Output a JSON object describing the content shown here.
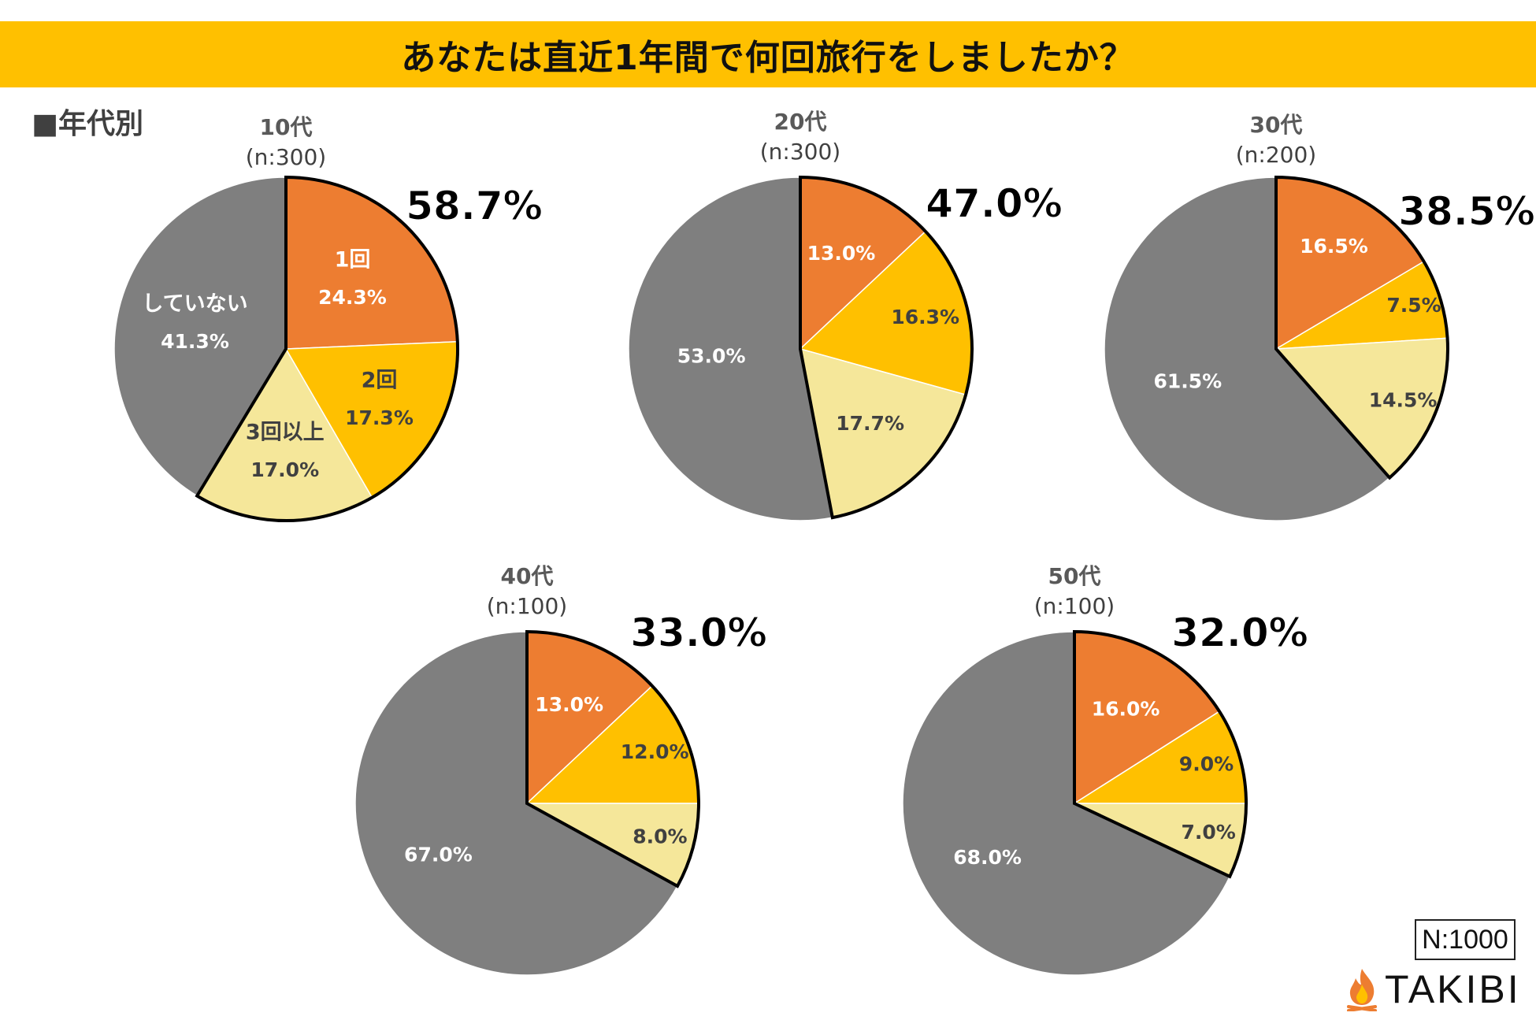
{
  "title": "あなたは直近1年間で何回旅行をしましたか？",
  "section_label": "■年代別",
  "total_n": "N:1000",
  "brand": "TAKIBI",
  "colors": {
    "once": "#ED7D31",
    "twice": "#FFC000",
    "three_plus": "#F5E79A",
    "none": "#7F7F7F",
    "title_bg": "#FFC000"
  },
  "chart_data": [
    {
      "type": "pie",
      "title": "10代",
      "subtitle": "(n:300)",
      "highlight": "58.7%",
      "slices": [
        {
          "name": "1回",
          "value": 24.3,
          "label": "24.3%",
          "display_name": "1回"
        },
        {
          "name": "2回",
          "value": 17.3,
          "label": "17.3%",
          "display_name": "2回"
        },
        {
          "name": "3回以上",
          "value": 17.0,
          "label": "17.0%",
          "display_name": "3回以上"
        },
        {
          "name": "していない",
          "value": 41.3,
          "label": "41.3%",
          "display_name": "していない"
        }
      ]
    },
    {
      "type": "pie",
      "title": "20代",
      "subtitle": "(n:300)",
      "highlight": "47.0%",
      "slices": [
        {
          "name": "1回",
          "value": 13.0,
          "label": "13.0%"
        },
        {
          "name": "2回",
          "value": 16.3,
          "label": "16.3%"
        },
        {
          "name": "3回以上",
          "value": 17.7,
          "label": "17.7%"
        },
        {
          "name": "していない",
          "value": 53.0,
          "label": "53.0%"
        }
      ]
    },
    {
      "type": "pie",
      "title": "30代",
      "subtitle": "(n:200)",
      "highlight": "38.5%",
      "slices": [
        {
          "name": "1回",
          "value": 16.5,
          "label": "16.5%"
        },
        {
          "name": "2回",
          "value": 7.5,
          "label": "7.5%"
        },
        {
          "name": "3回以上",
          "value": 14.5,
          "label": "14.5%"
        },
        {
          "name": "していない",
          "value": 61.5,
          "label": "61.5%"
        }
      ]
    },
    {
      "type": "pie",
      "title": "40代",
      "subtitle": "(n:100)",
      "highlight": "33.0%",
      "slices": [
        {
          "name": "1回",
          "value": 13.0,
          "label": "13.0%"
        },
        {
          "name": "2回",
          "value": 12.0,
          "label": "12.0%"
        },
        {
          "name": "3回以上",
          "value": 8.0,
          "label": "8.0%"
        },
        {
          "name": "していない",
          "value": 67.0,
          "label": "67.0%"
        }
      ]
    },
    {
      "type": "pie",
      "title": "50代",
      "subtitle": "(n:100)",
      "highlight": "32.0%",
      "slices": [
        {
          "name": "1回",
          "value": 16.0,
          "label": "16.0%"
        },
        {
          "name": "2回",
          "value": 9.0,
          "label": "9.0%"
        },
        {
          "name": "3回以上",
          "value": 7.0,
          "label": "7.0%"
        },
        {
          "name": "していない",
          "value": 68.0,
          "label": "68.0%"
        }
      ]
    }
  ]
}
